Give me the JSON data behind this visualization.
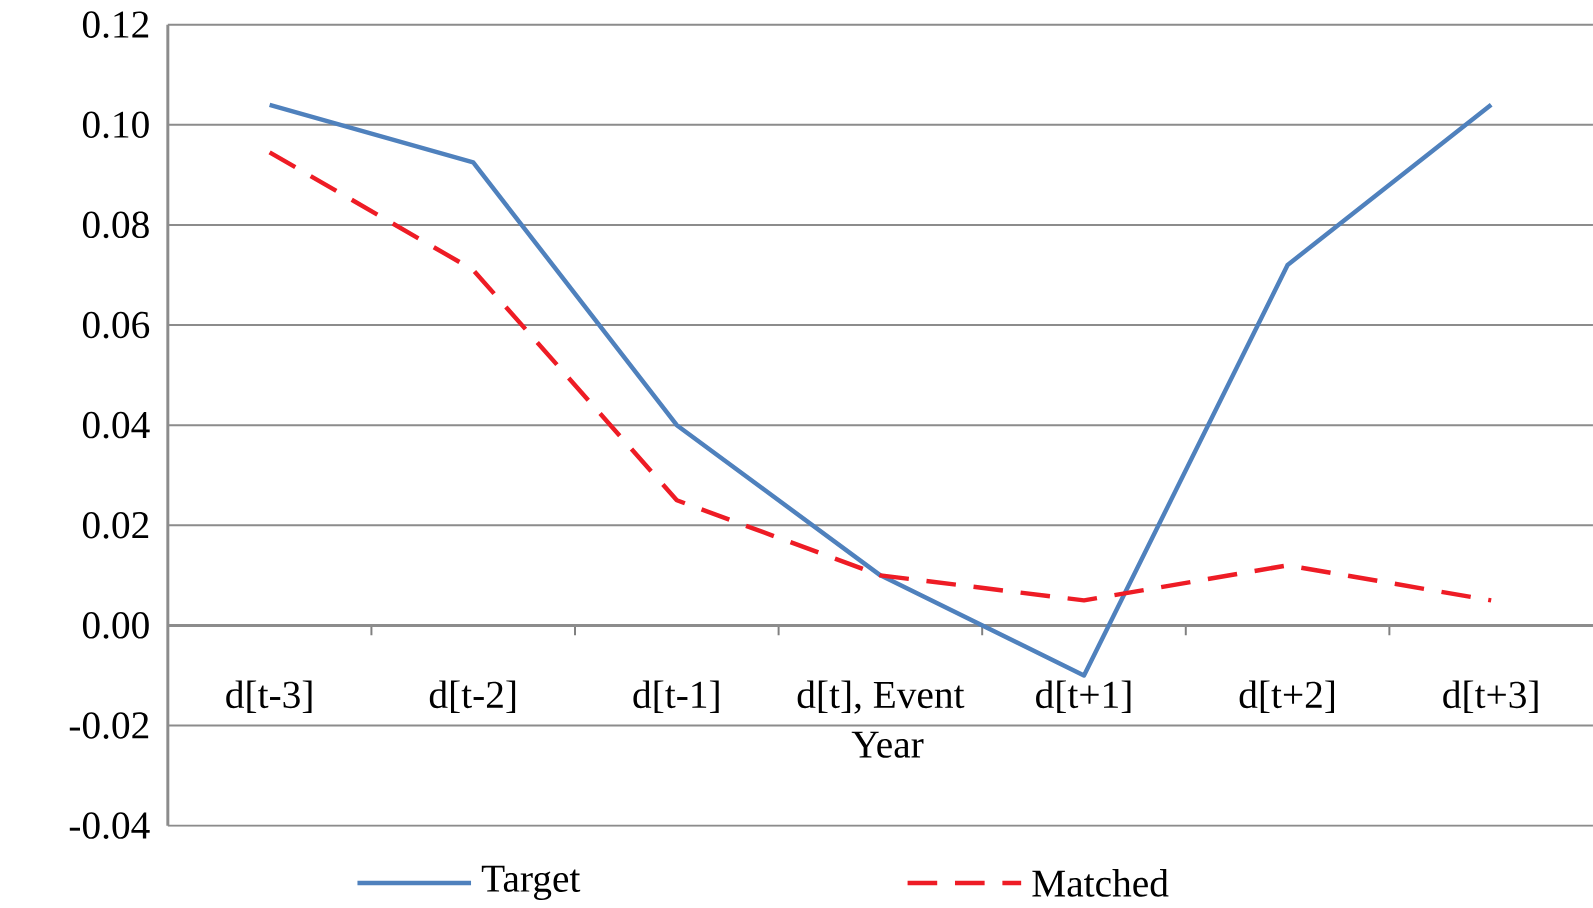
{
  "chart_data": {
    "type": "line",
    "xlabel": "Year",
    "categories": [
      "d[t-3]",
      "d[t-2]",
      "d[t-1]",
      "d[t], Event",
      "d[t+1]",
      "d[t+2]",
      "d[t+3]"
    ],
    "series": [
      {
        "name": "Target",
        "color": "#4f81bd",
        "line_style": "solid",
        "values": [
          0.104,
          0.0925,
          0.04,
          0.01,
          -0.01,
          0.072,
          0.104
        ]
      },
      {
        "name": "Matched",
        "color": "#ee1c25",
        "line_style": "dashed",
        "values": [
          0.0945,
          0.071,
          0.025,
          0.01,
          0.005,
          0.012,
          0.005
        ]
      }
    ],
    "ylim": [
      -0.04,
      0.12
    ],
    "yticks": [
      {
        "value": -0.04,
        "label": "-0.04"
      },
      {
        "value": -0.02,
        "label": "-0.02"
      },
      {
        "value": 0,
        "label": "0.00"
      },
      {
        "value": 0.02,
        "label": "0.02"
      },
      {
        "value": 0.04,
        "label": "0.04"
      },
      {
        "value": 0.06,
        "label": "0.06"
      },
      {
        "value": 0.08,
        "label": "0.08"
      },
      {
        "value": 0.1,
        "label": "0.10"
      },
      {
        "value": 0.12,
        "label": "0.12"
      }
    ],
    "grid": "y",
    "legend": "bottom"
  }
}
